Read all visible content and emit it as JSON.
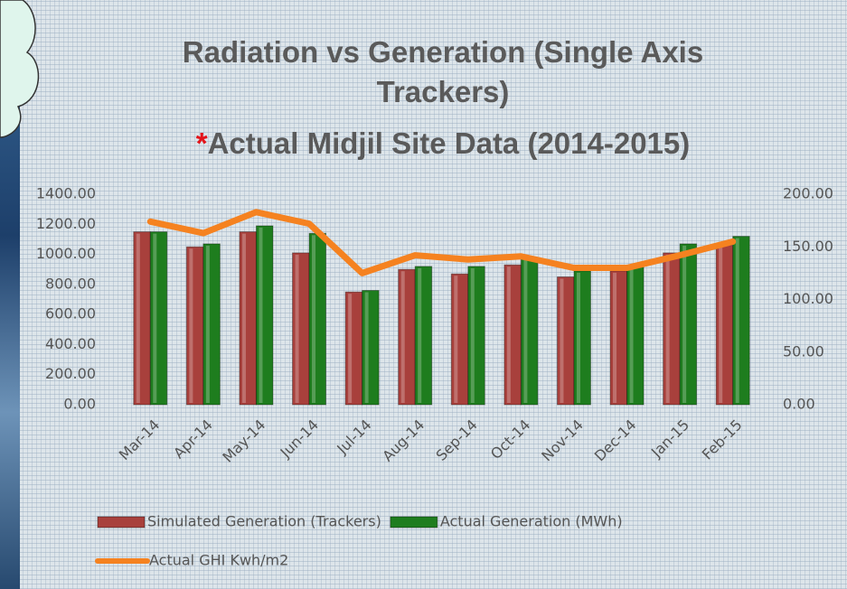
{
  "chart_data": {
    "type": "bar",
    "title": "Radiation vs Generation (Single Axis Trackers)",
    "subtitle_marker": "*",
    "subtitle": "Actual Midjil Site Data (2014-2015)",
    "categories": [
      "Mar-14",
      "Apr-14",
      "May-14",
      "Jun-14",
      "Jul-14",
      "Aug-14",
      "Sep-14",
      "Oct-14",
      "Nov-14",
      "Dec-14",
      "Jan-15",
      "Feb-15"
    ],
    "series": [
      {
        "name": "Simulated Generation (Trackers)",
        "color": "#a8403c",
        "values": [
          1150,
          1050,
          1150,
          1010,
          750,
          900,
          870,
          930,
          850,
          890,
          1010,
          1060
        ]
      },
      {
        "name": "Actual Generation (MWh)",
        "color": "#1e7d1e",
        "values": [
          1150,
          1070,
          1190,
          1140,
          760,
          920,
          920,
          980,
          890,
          920,
          1070,
          1120
        ]
      },
      {
        "name": "Actual GHI Kwh/m2",
        "color": "#f58220",
        "type": "line",
        "axis": "y2",
        "values": [
          174,
          163,
          183,
          172,
          125,
          142,
          138,
          141,
          130,
          130,
          142,
          155
        ]
      }
    ],
    "ylim": [
      0,
      1400
    ],
    "yticks": [
      {
        "value": 0,
        "label": "0.00"
      },
      {
        "value": 200,
        "label": "200.00"
      },
      {
        "value": 400,
        "label": "400.00"
      },
      {
        "value": 600,
        "label": "600.00"
      },
      {
        "value": 800,
        "label": "800.00"
      },
      {
        "value": 1000,
        "label": "1000.00"
      },
      {
        "value": 1200,
        "label": "1200.00"
      },
      {
        "value": 1400,
        "label": "1400.00"
      }
    ],
    "y2lim": [
      0,
      200
    ],
    "y2ticks": [
      {
        "value": 0,
        "label": "0.00"
      },
      {
        "value": 50,
        "label": "50.00"
      },
      {
        "value": 100,
        "label": "100.00"
      },
      {
        "value": 150,
        "label": "150.00"
      },
      {
        "value": 200,
        "label": "200.00"
      }
    ],
    "legend": "bottom"
  }
}
